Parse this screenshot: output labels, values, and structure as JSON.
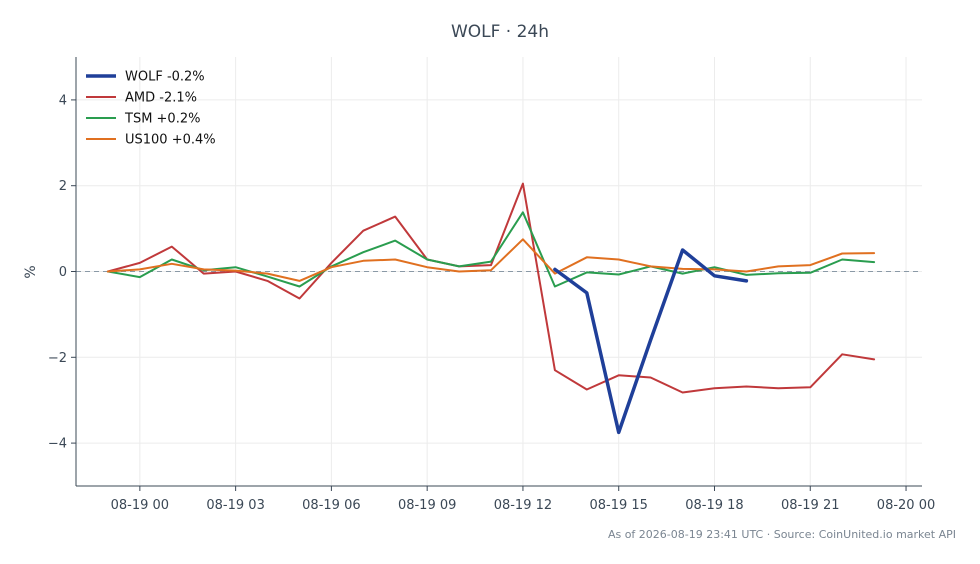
{
  "chart_data": {
    "type": "line",
    "title": "WOLF · 24h",
    "ylabel": "%",
    "xlabel": "",
    "footer": "As of 2026-08-19 23:41 UTC · Source: CoinUnited.io market API",
    "x_ticks": [
      "08-19 00",
      "08-19 03",
      "08-19 06",
      "08-19 09",
      "08-19 12",
      "08-19 15",
      "08-19 18",
      "08-19 21",
      "08-20 00"
    ],
    "y_ticks": [
      "4",
      "2",
      "0",
      "−2",
      "−4"
    ],
    "ylim": [
      -5,
      5
    ],
    "grid": true,
    "legend_position": "top-left",
    "zero_line": true,
    "series": [
      {
        "name": "WOLF -0.2%",
        "color": "#1f3f99",
        "x": [
          "08-19 13:00",
          "08-19 14:00",
          "08-19 15:00",
          "08-19 16:00",
          "08-19 17:00",
          "08-19 18:00",
          "08-19 19:00"
        ],
        "values": [
          0.05,
          -0.5,
          -3.75,
          -1.6,
          0.5,
          -0.1,
          -0.22
        ]
      },
      {
        "name": "AMD -2.1%",
        "color": "#c0393b",
        "x": [
          "08-18 23:00",
          "08-19 00:00",
          "08-19 01:00",
          "08-19 02:00",
          "08-19 03:00",
          "08-19 04:00",
          "08-19 05:00",
          "08-19 06:00",
          "08-19 07:00",
          "08-19 08:00",
          "08-19 09:00",
          "08-19 10:00",
          "08-19 11:00",
          "08-19 12:00",
          "08-19 13:00",
          "08-19 14:00",
          "08-19 15:00",
          "08-19 16:00",
          "08-19 17:00",
          "08-19 18:00",
          "08-19 19:00",
          "08-19 20:00",
          "08-19 21:00",
          "08-19 22:00",
          "08-19 23:00"
        ],
        "values": [
          0.0,
          0.2,
          0.58,
          -0.05,
          0.0,
          -0.22,
          -0.63,
          0.2,
          0.95,
          1.28,
          0.28,
          0.12,
          0.15,
          2.05,
          -2.3,
          -2.75,
          -2.42,
          -2.47,
          -2.82,
          -2.72,
          -2.68,
          -2.72,
          -2.7,
          -1.93,
          -2.05
        ]
      },
      {
        "name": "TSM +0.2%",
        "color": "#2a9d4f",
        "x": [
          "08-18 23:00",
          "08-19 00:00",
          "08-19 01:00",
          "08-19 02:00",
          "08-19 03:00",
          "08-19 04:00",
          "08-19 05:00",
          "08-19 06:00",
          "08-19 07:00",
          "08-19 08:00",
          "08-19 09:00",
          "08-19 10:00",
          "08-19 11:00",
          "08-19 12:00",
          "08-19 13:00",
          "08-19 14:00",
          "08-19 15:00",
          "08-19 16:00",
          "08-19 17:00",
          "08-19 18:00",
          "08-19 19:00",
          "08-19 20:00",
          "08-19 21:00",
          "08-19 22:00",
          "08-19 23:00"
        ],
        "values": [
          0.0,
          -0.13,
          0.28,
          0.03,
          0.1,
          -0.12,
          -0.35,
          0.12,
          0.45,
          0.72,
          0.28,
          0.12,
          0.23,
          1.38,
          -0.35,
          -0.02,
          -0.07,
          0.12,
          -0.05,
          0.1,
          -0.08,
          -0.04,
          -0.03,
          0.28,
          0.22
        ]
      },
      {
        "name": "US100 +0.4%",
        "color": "#e07020",
        "x": [
          "08-18 23:00",
          "08-19 00:00",
          "08-19 01:00",
          "08-19 02:00",
          "08-19 03:00",
          "08-19 04:00",
          "08-19 05:00",
          "08-19 06:00",
          "08-19 07:00",
          "08-19 08:00",
          "08-19 09:00",
          "08-19 10:00",
          "08-19 11:00",
          "08-19 12:00",
          "08-19 13:00",
          "08-19 14:00",
          "08-19 15:00",
          "08-19 16:00",
          "08-19 17:00",
          "08-19 18:00",
          "08-19 19:00",
          "08-19 20:00",
          "08-19 21:00",
          "08-19 22:00",
          "08-19 23:00"
        ],
        "values": [
          0.0,
          0.05,
          0.18,
          0.05,
          0.02,
          -0.05,
          -0.22,
          0.1,
          0.25,
          0.28,
          0.1,
          0.0,
          0.03,
          0.75,
          -0.05,
          0.33,
          0.28,
          0.12,
          0.06,
          0.05,
          0.0,
          0.12,
          0.15,
          0.42,
          0.43
        ]
      }
    ]
  }
}
